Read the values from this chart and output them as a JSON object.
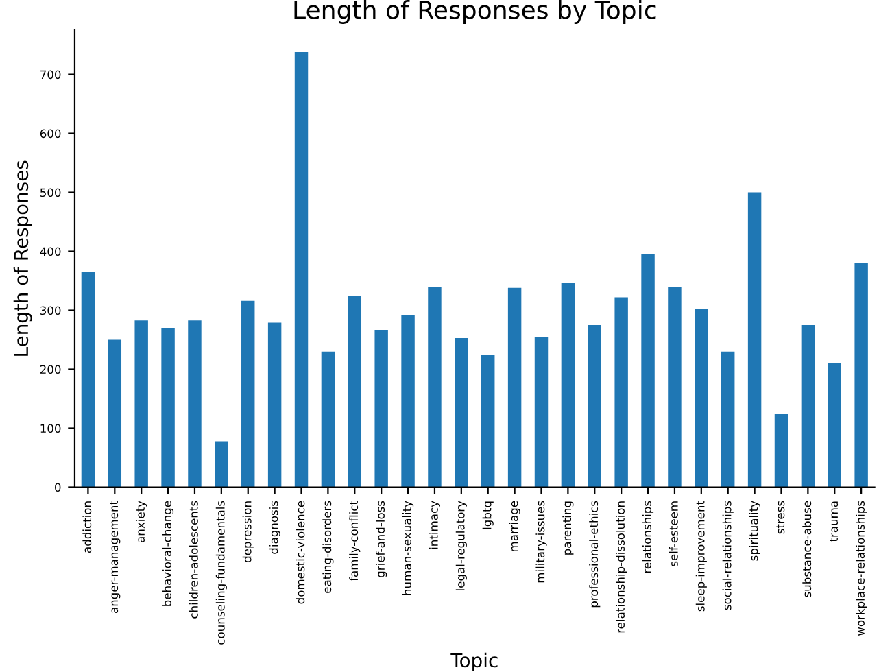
{
  "chart_data": {
    "type": "bar",
    "title": "Length of Responses by Topic",
    "xlabel": "Topic",
    "ylabel": "Length of Responses",
    "categories": [
      "addiction",
      "anger-management",
      "anxiety",
      "behavioral-change",
      "children-adolescents",
      "counseling-fundamentals",
      "depression",
      "diagnosis",
      "domestic-violence",
      "eating-disorders",
      "family-conflict",
      "grief-and-loss",
      "human-sexuality",
      "intimacy",
      "legal-regulatory",
      "lgbtq",
      "marriage",
      "military-issues",
      "parenting",
      "professional-ethics",
      "relationship-dissolution",
      "relationships",
      "self-esteem",
      "sleep-improvement",
      "social-relationships",
      "spirituality",
      "stress",
      "substance-abuse",
      "trauma",
      "workplace-relationships"
    ],
    "values": [
      365,
      250,
      283,
      270,
      283,
      78,
      316,
      279,
      738,
      230,
      325,
      267,
      292,
      340,
      253,
      225,
      338,
      254,
      346,
      275,
      322,
      395,
      340,
      303,
      230,
      500,
      124,
      275,
      211,
      380
    ],
    "color": "#1f77b4",
    "ylim": [
      0,
      775
    ],
    "yticks": [
      0,
      100,
      200,
      300,
      400,
      500,
      600,
      700
    ],
    "grid": false,
    "legend": false
  }
}
